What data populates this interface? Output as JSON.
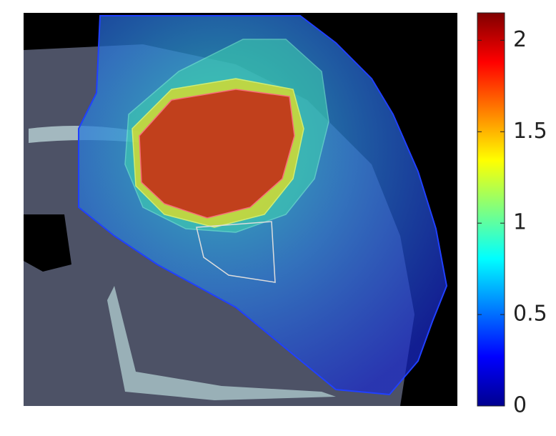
{
  "chart_data": {
    "type": "image",
    "colormap": "jet",
    "clim": [
      0,
      2.15
    ],
    "cticks": [
      0,
      0.5,
      1,
      {
        "value": 1.5,
        "label": "1.5"
      },
      2
    ]
  }
}
